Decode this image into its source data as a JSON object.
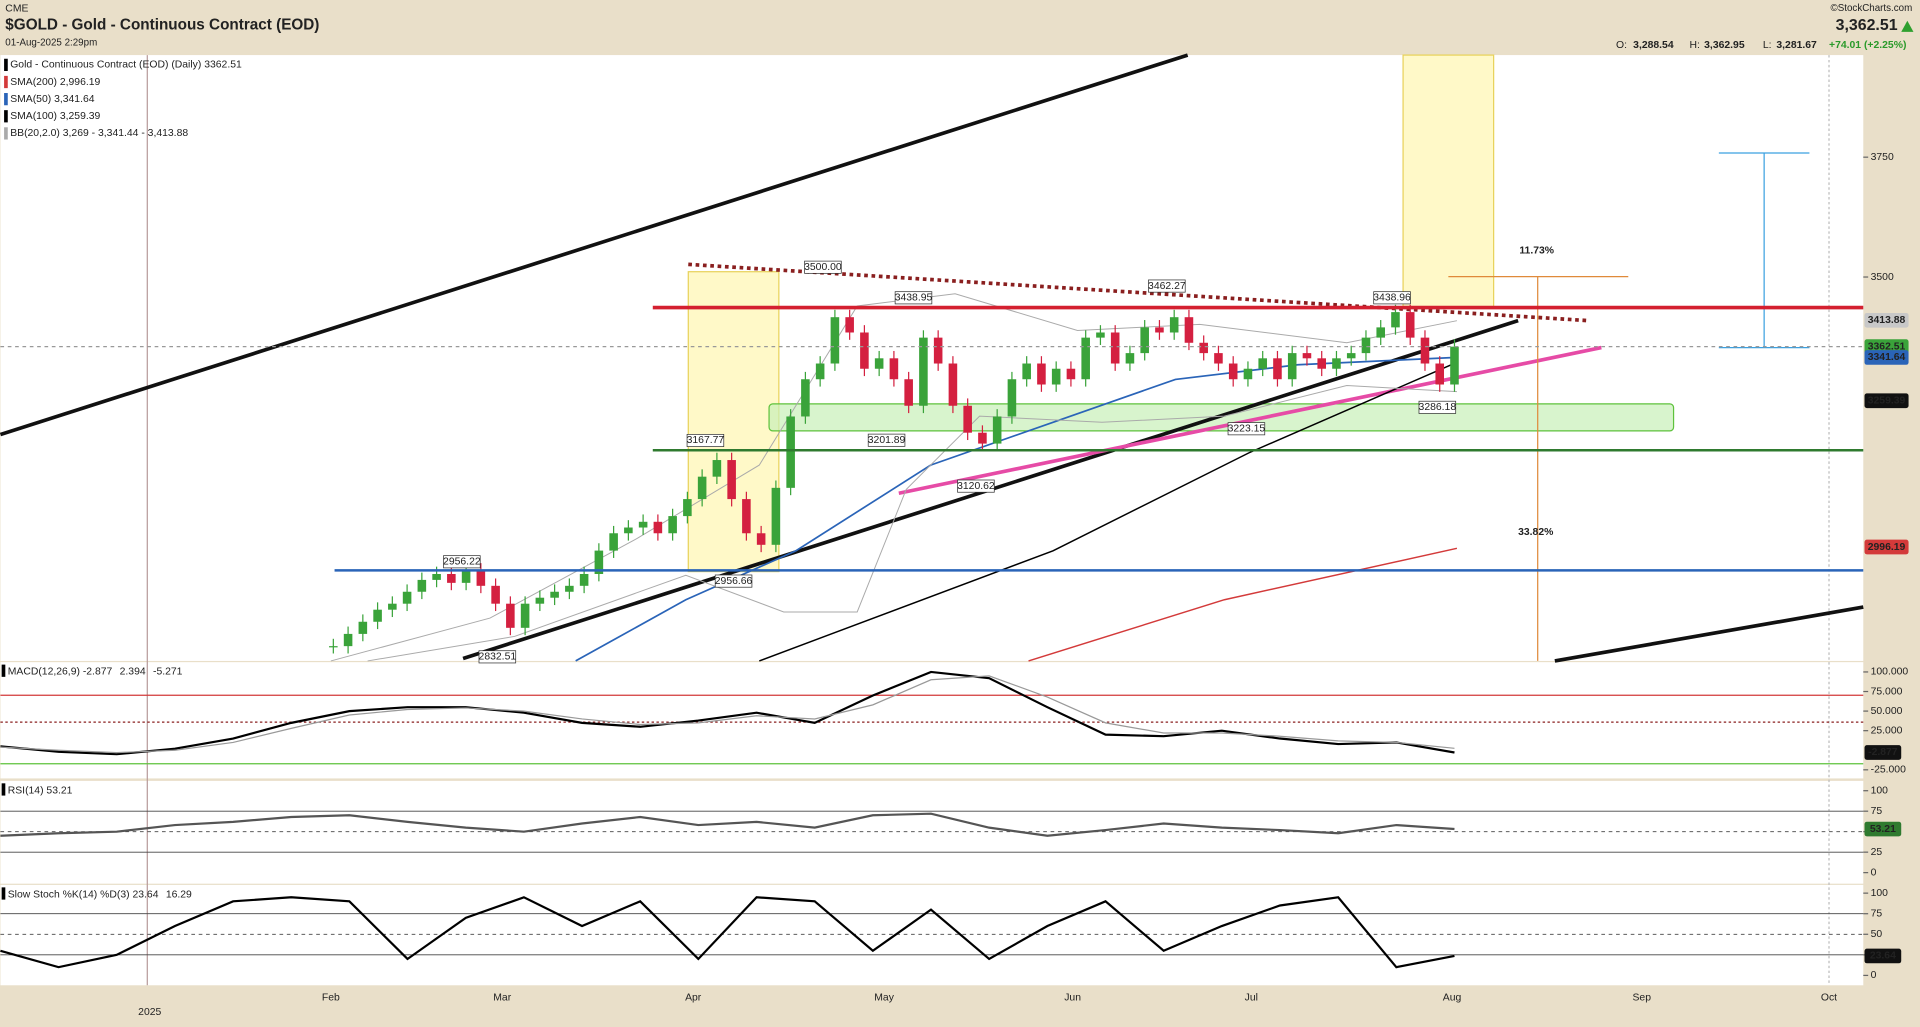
{
  "header": {
    "exchange": "CME",
    "title": "$GOLD - Gold - Continuous Contract (EOD)",
    "datetime": "01-Aug-2025 2:29pm",
    "source": "©StockCharts.com",
    "last": "3,362.51",
    "ohlc": [
      {
        "key": "O:",
        "value": "3,288.54"
      },
      {
        "key": "H:",
        "value": "3,362.95"
      },
      {
        "key": "L:",
        "value": "3,281.67"
      }
    ],
    "change": "+74.01 (+2.25%)"
  },
  "x_axis": {
    "labels": [
      "2025",
      "Feb",
      "Mar",
      "Apr",
      "May",
      "Jun",
      "Jul",
      "Aug",
      "Sep",
      "Oct"
    ]
  },
  "chart_data": [
    {
      "type": "candlestick",
      "log_scale": true,
      "up_color": "#3aa33a",
      "down_color": "#d42040",
      "legend": [
        {
          "text": "Gold - Continuous Contract (EOD) (Daily) 3362.51",
          "color": "#000000"
        },
        {
          "text": "SMA(200) 2,996.19",
          "color": "#d33a3a"
        },
        {
          "text": "SMA(50) 3,341.64",
          "color": "#2a64b8"
        },
        {
          "text": "SMA(100) 3,259.39",
          "color": "#000000"
        },
        {
          "text": "BB(20,2.0) 3,269 - 3,341.44 - 3,413.88",
          "color": "#aaaaaa"
        }
      ],
      "closes": [
        2830,
        2850,
        2870,
        2890,
        2900,
        2920,
        2940,
        2950,
        2935,
        2956,
        2930,
        2900,
        2860,
        2900,
        2910,
        2920,
        2930,
        2950,
        2990,
        3020,
        3030,
        3040,
        3020,
        3050,
        3080,
        3120,
        3150,
        3080,
        3020,
        3000,
        3100,
        3230,
        3300,
        3330,
        3420,
        3390,
        3320,
        3340,
        3300,
        3250,
        3380,
        3330,
        3250,
        3200,
        3180,
        3230,
        3300,
        3330,
        3290,
        3320,
        3300,
        3380,
        3390,
        3330,
        3350,
        3400,
        3390,
        3420,
        3370,
        3350,
        3330,
        3300,
        3320,
        3340,
        3300,
        3350,
        3340,
        3320,
        3340,
        3350,
        3380,
        3400,
        3430,
        3380,
        3330,
        3290,
        3362.51
      ],
      "ylim": [
        2806,
        3977
      ],
      "yticks": [
        3500,
        3750
      ],
      "price_labels": [
        3413.88,
        3362.51,
        3341.64,
        3259.39,
        2996.19
      ],
      "price_label_colors": [
        "#c8c8c8",
        "#3aa33a",
        "#2a64b8",
        "#111111",
        "#d33a3a"
      ],
      "annotations": [
        {
          "value": 3500,
          "label": "3500.00"
        },
        3438.95,
        3462.27,
        3438.96,
        3167.77,
        3201.89,
        3120.62,
        3223.15,
        3286.18,
        2956.22,
        2956.66,
        2832.51
      ],
      "measures": [
        "11.73%",
        "33.82%"
      ]
    },
    {
      "type": "line",
      "title": "MACD(12,26,9) -2.877",
      "extra": [
        "2.394",
        "-5.271"
      ],
      "series": [
        {
          "name": "MACD",
          "color": "#000000",
          "values": [
            5,
            -2,
            -5,
            2,
            15,
            35,
            50,
            55,
            55,
            48,
            35,
            30,
            38,
            48,
            35,
            70,
            100,
            92,
            55,
            20,
            18,
            25,
            15,
            8,
            10,
            -2.877
          ]
        },
        {
          "name": "Signal",
          "color": "#999999",
          "values": [
            4,
            0,
            -3,
            0,
            10,
            28,
            45,
            52,
            54,
            50,
            40,
            33,
            35,
            44,
            40,
            58,
            90,
            95,
            68,
            35,
            22,
            22,
            18,
            12,
            10,
            2.394
          ]
        }
      ],
      "ylim": [
        -36,
        112.5
      ],
      "yticks": [
        {
          "value": 100,
          "label": "100.000"
        },
        {
          "value": 75,
          "label": "75.000"
        },
        {
          "value": 50,
          "label": "50.000"
        },
        {
          "value": 25,
          "label": "25.000"
        },
        {
          "value": -25,
          "label": "-25.000"
        }
      ]
    },
    {
      "type": "line",
      "title": "RSI(14) 53.21",
      "series": [
        {
          "name": "RSI",
          "color": "#555555",
          "values": [
            45,
            48,
            50,
            58,
            62,
            68,
            70,
            62,
            55,
            50,
            60,
            68,
            58,
            62,
            55,
            70,
            72,
            55,
            45,
            52,
            60,
            55,
            52,
            48,
            58,
            53.21
          ]
        }
      ],
      "ylim": [
        -13.5,
        112
      ],
      "yticks": [
        100,
        75,
        50,
        25,
        0
      ]
    },
    {
      "type": "line",
      "title": "Slow Stoch %K(14) %D(3) 23.64",
      "extra": [
        "16.29"
      ],
      "series": [
        {
          "name": "%K",
          "color": "#000000",
          "values": [
            30,
            10,
            25,
            60,
            90,
            95,
            90,
            20,
            70,
            95,
            60,
            90,
            20,
            95,
            90,
            30,
            80,
            20,
            60,
            90,
            30,
            60,
            85,
            95,
            10,
            23.64
          ]
        }
      ],
      "ylim": [
        -12,
        110
      ],
      "yticks": [
        100,
        75,
        50,
        25,
        0
      ]
    }
  ]
}
